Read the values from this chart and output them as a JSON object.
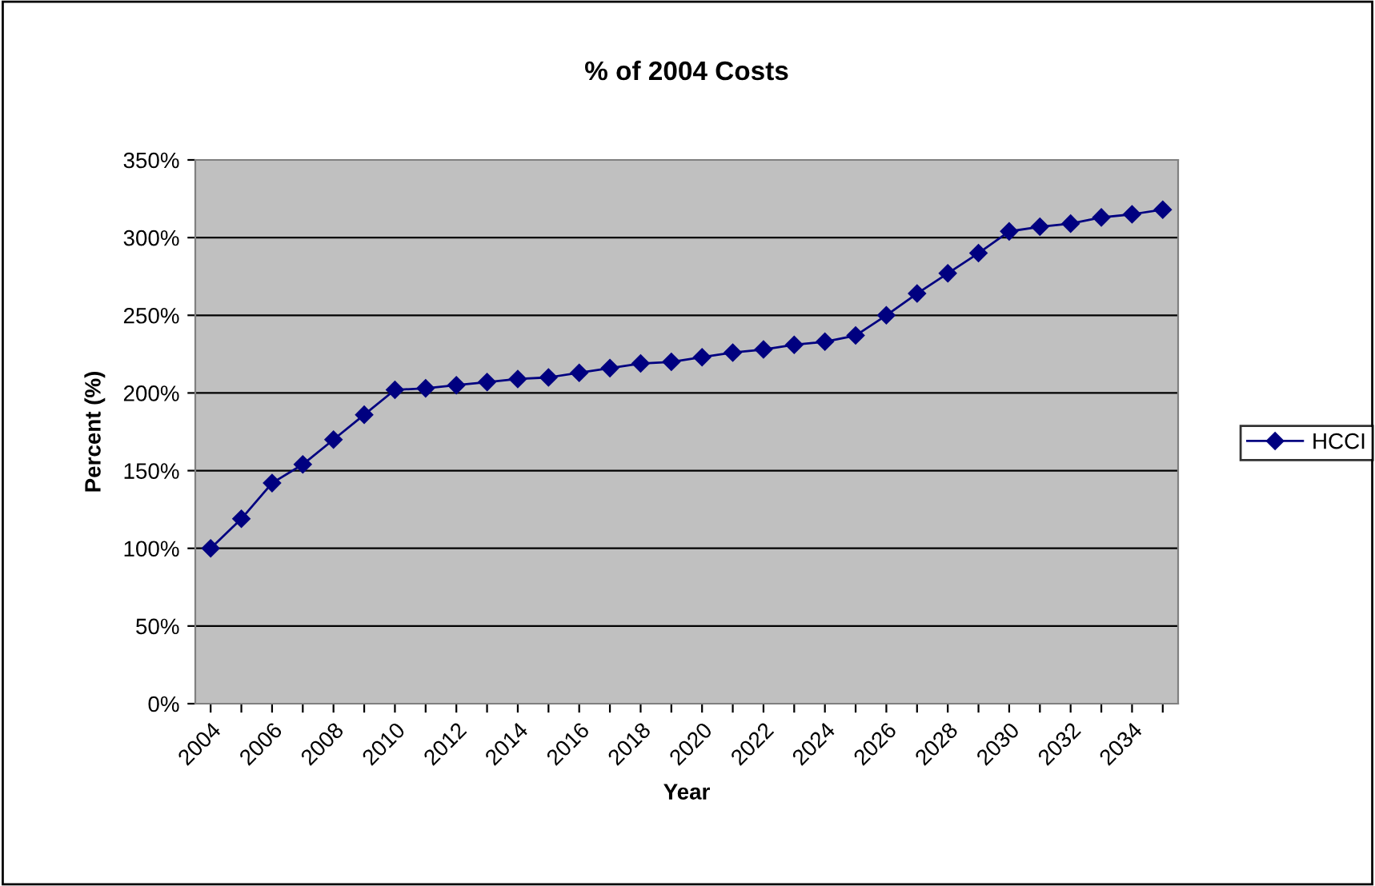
{
  "chart_data": {
    "type": "line",
    "title": "% of 2004 Costs",
    "xlabel": "Year",
    "ylabel": "Percent (%)",
    "categories": [
      "2004",
      null,
      "2006",
      null,
      "2008",
      null,
      "2010",
      null,
      "2012",
      null,
      "2014",
      null,
      "2016",
      null,
      "2018",
      null,
      "2020",
      null,
      "2022",
      null,
      "2024",
      null,
      "2026",
      null,
      "2028",
      null,
      "2030",
      null,
      "2032",
      null,
      "2034",
      null
    ],
    "series": [
      {
        "name": "HCCI",
        "color": "#000080",
        "values": [
          100,
          119,
          142,
          154,
          170,
          186,
          202,
          203,
          205,
          207,
          209,
          210,
          213,
          216,
          219,
          220,
          223,
          226,
          228,
          231,
          233,
          237,
          250,
          264,
          277,
          290,
          304,
          307,
          309,
          313,
          315,
          318
        ]
      }
    ],
    "ylim": [
      0,
      350
    ],
    "yticks": [
      {
        "value": 0,
        "label": "0%"
      },
      {
        "value": 50,
        "label": "50%"
      },
      {
        "value": 100,
        "label": "100%"
      },
      {
        "value": 150,
        "label": "150%"
      },
      {
        "value": 200,
        "label": "200%"
      },
      {
        "value": 250,
        "label": "250%"
      },
      {
        "value": 300,
        "label": "300%"
      },
      {
        "value": 350,
        "label": "350%"
      }
    ],
    "grid": "y",
    "legend": "right",
    "marker": "diamond",
    "line_style": "solid"
  }
}
